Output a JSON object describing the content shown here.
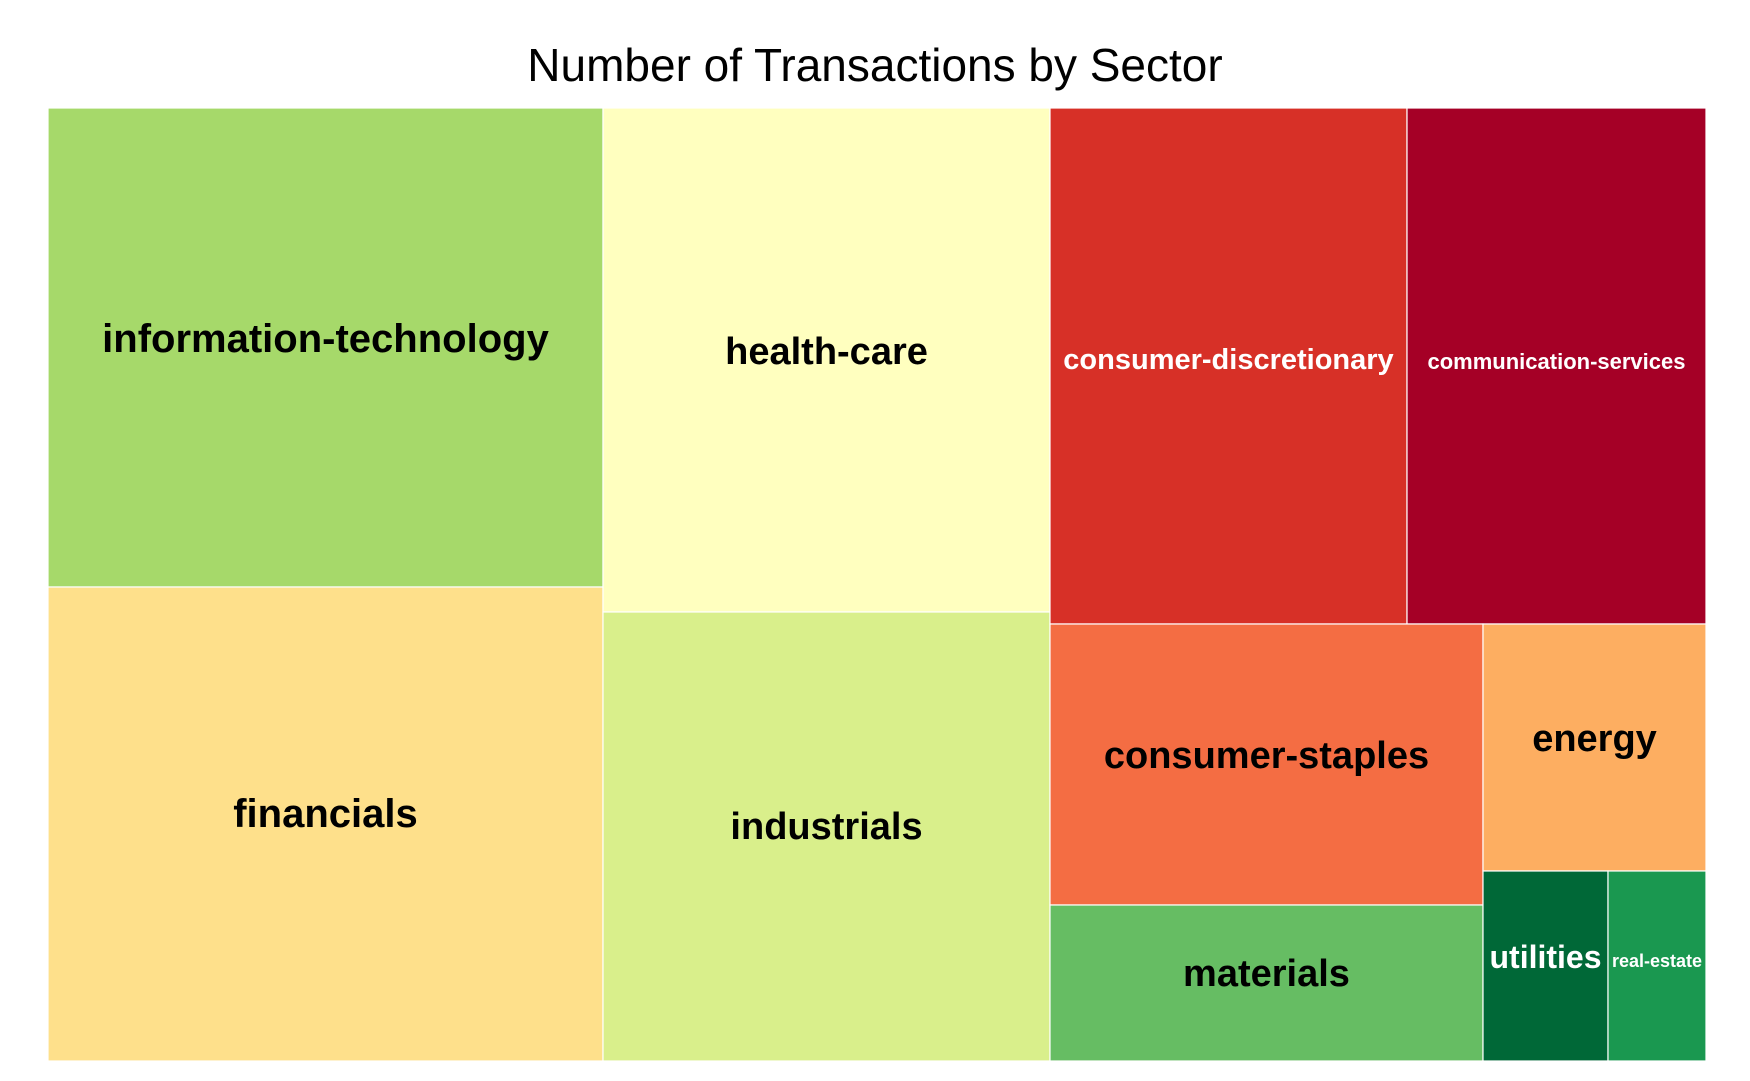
{
  "chart_data": {
    "type": "treemap",
    "title": "Number of Transactions by Sector",
    "sectors": [
      {
        "name": "information-technology",
        "color": "#a6d96a",
        "label_color": "#000000"
      },
      {
        "name": "financials",
        "color": "#fee08b",
        "label_color": "#000000"
      },
      {
        "name": "health-care",
        "color": "#ffffbf",
        "label_color": "#000000"
      },
      {
        "name": "industrials",
        "color": "#d9ef8b",
        "label_color": "#000000"
      },
      {
        "name": "consumer-discretionary",
        "color": "#d73027",
        "label_color": "#ffffff"
      },
      {
        "name": "communication-services",
        "color": "#a50026",
        "label_color": "#ffffff"
      },
      {
        "name": "consumer-staples",
        "color": "#f46d43",
        "label_color": "#000000"
      },
      {
        "name": "energy",
        "color": "#fdae61",
        "label_color": "#000000"
      },
      {
        "name": "materials",
        "color": "#66bd63",
        "label_color": "#000000"
      },
      {
        "name": "utilities",
        "color": "#006837",
        "label_color": "#ffffff"
      },
      {
        "name": "real-estate",
        "color": "#1a9850",
        "label_color": "#ffffff"
      }
    ]
  }
}
